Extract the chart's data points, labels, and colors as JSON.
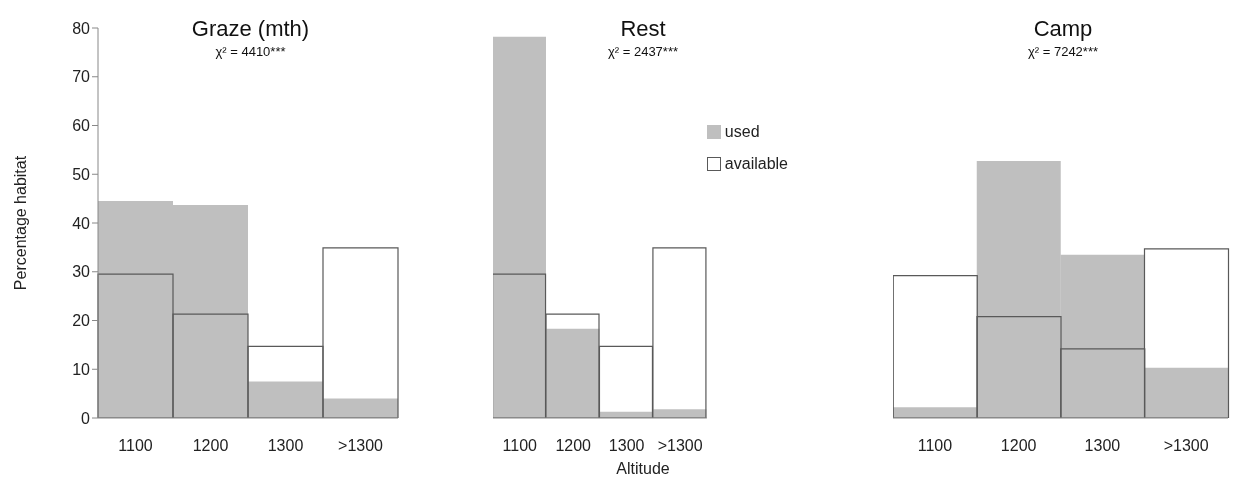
{
  "chart_data": [
    {
      "type": "bar",
      "title": "Graze (mth)",
      "subtitle": "χ² = 4410***",
      "ylabel": "Percentage habitat",
      "categories": [
        "1100",
        "1200",
        "1300",
        ">1300"
      ],
      "series": [
        {
          "color": "#bfbfbf",
          "values": [
            44.5,
            43.7,
            7.5,
            4.0
          ]
        },
        {
          "color": "#595959",
          "values": [
            29.5,
            21.3,
            14.7,
            34.9
          ]
        }
      ],
      "ylim": [
        0,
        80
      ],
      "yticks": [
        0,
        10,
        20,
        30,
        40,
        50,
        60,
        70,
        80
      ],
      "grid": false,
      "legend": false
    },
    {
      "type": "bar",
      "title": "Rest",
      "subtitle": "χ² = 2437***",
      "xlabel": "Altitude",
      "categories": [
        "1100",
        "1200",
        "1300",
        ">1300"
      ],
      "series": [
        {
          "name": "used",
          "color": "#bfbfbf",
          "values": [
            78.2,
            18.3,
            1.3,
            1.8
          ]
        },
        {
          "name": "available",
          "color": "#595959",
          "values": [
            29.5,
            21.3,
            14.7,
            34.9
          ]
        }
      ],
      "ylim": [
        0,
        80
      ],
      "yticks": [
        0,
        10,
        20,
        30,
        40,
        50,
        60,
        70,
        80
      ],
      "tick_labels": "x",
      "grid": false,
      "legend": "top right"
    },
    {
      "type": "bar",
      "title": "Camp",
      "subtitle": "χ² = 7242***",
      "categories": [
        "1100",
        "1200",
        "1300",
        ">1300"
      ],
      "series": [
        {
          "color": "#bfbfbf",
          "values": [
            2.2,
            52.7,
            33.5,
            10.3
          ]
        },
        {
          "color": "#595959",
          "values": [
            29.2,
            20.8,
            14.2,
            34.7
          ]
        }
      ],
      "ylim": [
        0,
        80
      ],
      "yticks": [
        0,
        10,
        20,
        30,
        40,
        50,
        60,
        70,
        80
      ],
      "tick_labels": "x",
      "grid": false,
      "legend": false
    }
  ]
}
